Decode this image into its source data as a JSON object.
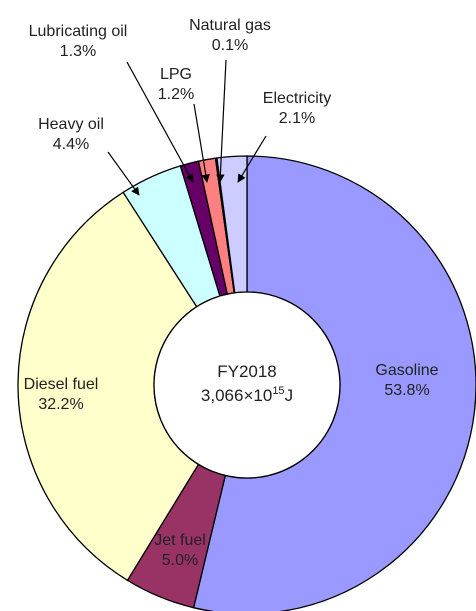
{
  "chart_data": {
    "type": "pie",
    "donut": true,
    "start": "12 o'clock",
    "direction": "clockwise",
    "center_label": {
      "line1": "FY2018",
      "line2_prefix": "3,066×10",
      "line2_exp": "15",
      "line2_suffix": "J"
    },
    "slices": [
      {
        "name": "Gasoline",
        "value": 53.8,
        "label": "53.8%",
        "color": "#9999ff"
      },
      {
        "name": "Jet fuel",
        "value": 5.0,
        "label": "5.0%",
        "color": "#993366"
      },
      {
        "name": "Diesel fuel",
        "value": 32.2,
        "label": "32.2%",
        "color": "#ffffcc"
      },
      {
        "name": "Heavy oil",
        "value": 4.4,
        "label": "4.4%",
        "color": "#ccffff"
      },
      {
        "name": "Lubricating oil",
        "value": 1.3,
        "label": "1.3%",
        "color": "#660066"
      },
      {
        "name": "LPG",
        "value": 1.2,
        "label": "1.2%",
        "color": "#ff8080"
      },
      {
        "name": "Natural gas",
        "value": 0.1,
        "label": "0.1%",
        "color": "#0066cc"
      },
      {
        "name": "Electricity",
        "value": 2.1,
        "label": "2.1%",
        "color": "#ccccff"
      }
    ]
  }
}
